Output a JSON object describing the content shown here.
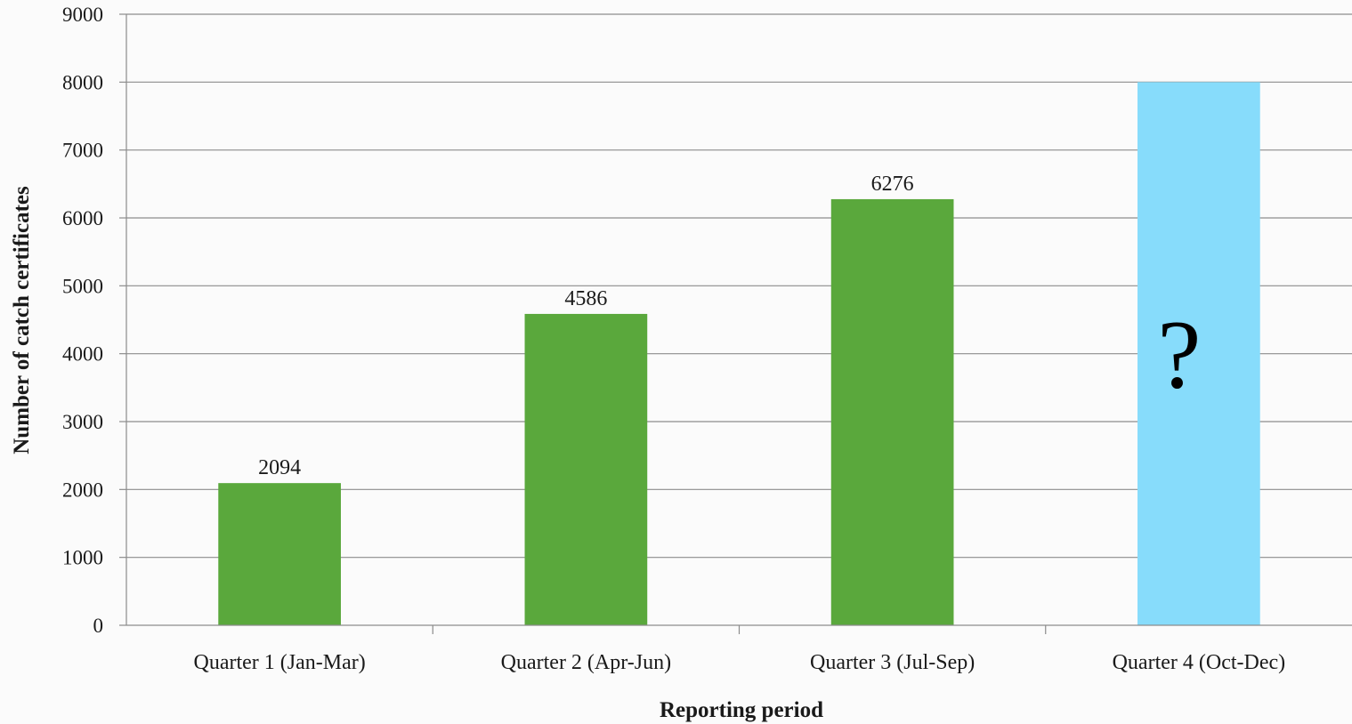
{
  "chart_data": {
    "type": "bar",
    "title": "",
    "xlabel": "Reporting period",
    "ylabel": "Number of catch certificates",
    "ylim": [
      0,
      9000
    ],
    "yticks": [
      0,
      1000,
      2000,
      3000,
      4000,
      5000,
      6000,
      7000,
      8000,
      9000
    ],
    "grid": true,
    "legend": "none",
    "categories": [
      "Quarter 1 (Jan-Mar)",
      "Quarter 2 (Apr-Jun)",
      "Quarter 3 (Jul-Sep)",
      "Quarter 4 (Oct-Dec)"
    ],
    "values": [
      2094,
      4586,
      6276,
      8000
    ],
    "data_labels": [
      "2094",
      "4586",
      "6276",
      "?"
    ],
    "bar_colors": [
      "#5aa83c",
      "#5aa83c",
      "#5aa83c",
      "#87dcfb"
    ]
  }
}
